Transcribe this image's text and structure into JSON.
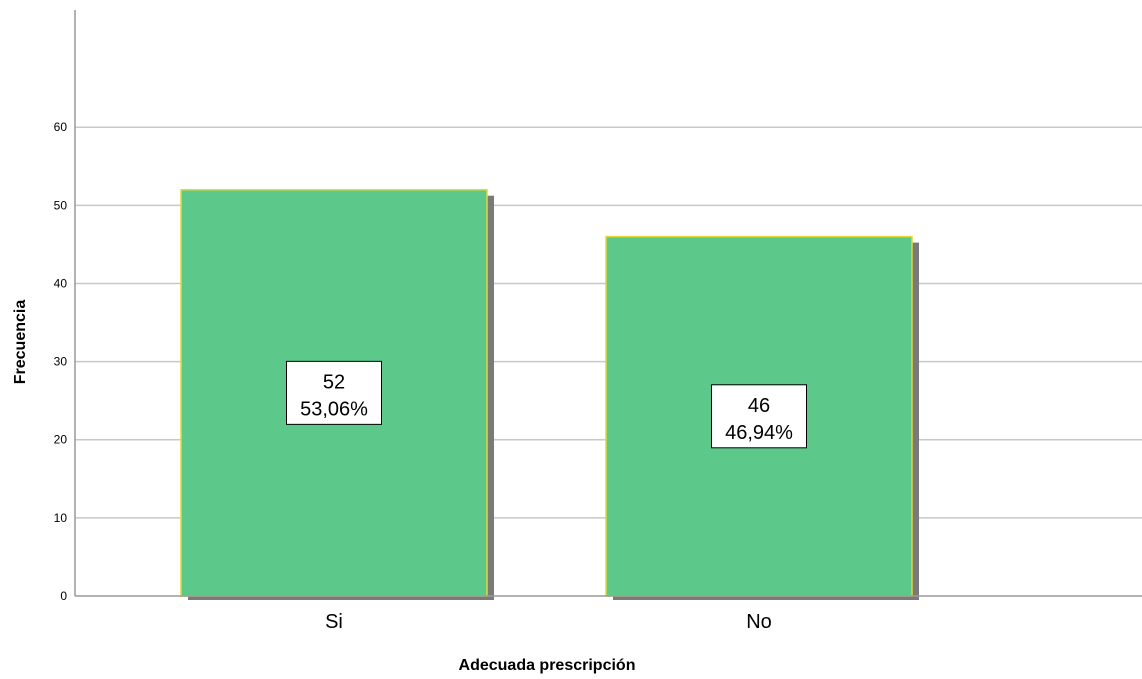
{
  "chart_data": {
    "type": "bar",
    "title": "",
    "xlabel": "Adecuada prescripción",
    "ylabel": "Frecuencia",
    "categories": [
      "Si",
      "No"
    ],
    "values": [
      52,
      46
    ],
    "value_labels": [
      "52",
      "46"
    ],
    "percent_labels": [
      "53,06%",
      "46,94%"
    ],
    "yticks": [
      0,
      10,
      20,
      30,
      40,
      50,
      60
    ],
    "ylim": [
      0,
      75
    ],
    "grid": true,
    "legend": "none",
    "bar_color": "#5cc98a",
    "bar_border_color": "#e3d838",
    "shadow_color": "#7a7a7a",
    "grid_color": "#c8c8c8"
  }
}
